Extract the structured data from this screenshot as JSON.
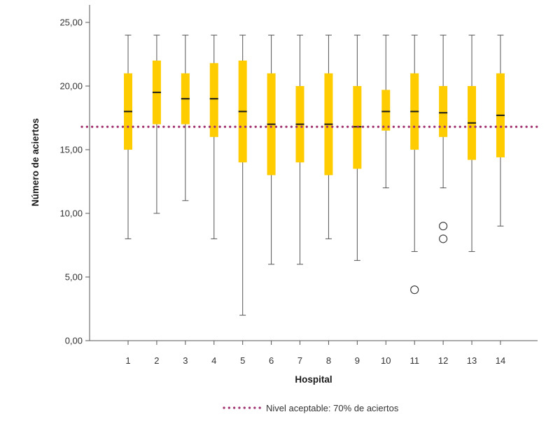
{
  "chart_data": {
    "type": "boxplot",
    "title": "",
    "xlabel": "Hospital",
    "ylabel": "Número de aciertos",
    "ylim": [
      0,
      25
    ],
    "yticks": [
      0,
      5,
      10,
      15,
      20,
      25
    ],
    "ytick_labels": [
      "0,00",
      "5,00",
      "10,00",
      "15,00",
      "20,00",
      "25,00"
    ],
    "categories": [
      "1",
      "2",
      "3",
      "4",
      "5",
      "6",
      "7",
      "8",
      "9",
      "10",
      "11",
      "12",
      "13",
      "14"
    ],
    "boxes": [
      {
        "min": 8,
        "q1": 15,
        "median": 18,
        "q3": 21,
        "max": 24,
        "outliers": []
      },
      {
        "min": 10,
        "q1": 17,
        "median": 19.5,
        "q3": 22,
        "max": 24,
        "outliers": []
      },
      {
        "min": 11,
        "q1": 17,
        "median": 19,
        "q3": 21,
        "max": 24,
        "outliers": []
      },
      {
        "min": 8,
        "q1": 16,
        "median": 19,
        "q3": 21.8,
        "max": 24,
        "outliers": []
      },
      {
        "min": 2,
        "q1": 14,
        "median": 18,
        "q3": 22,
        "max": 24,
        "outliers": []
      },
      {
        "min": 6,
        "q1": 13,
        "median": 17,
        "q3": 21,
        "max": 24,
        "outliers": []
      },
      {
        "min": 6,
        "q1": 14,
        "median": 17,
        "q3": 20,
        "max": 24,
        "outliers": []
      },
      {
        "min": 8,
        "q1": 13,
        "median": 17,
        "q3": 21,
        "max": 24,
        "outliers": []
      },
      {
        "min": 6.3,
        "q1": 13.5,
        "median": 16.8,
        "q3": 20,
        "max": 24,
        "outliers": []
      },
      {
        "min": 12,
        "q1": 16.5,
        "median": 18,
        "q3": 19.7,
        "max": 24,
        "outliers": []
      },
      {
        "min": 7,
        "q1": 15,
        "median": 18,
        "q3": 21,
        "max": 24,
        "outliers": [
          4
        ]
      },
      {
        "min": 12,
        "q1": 16,
        "median": 17.9,
        "q3": 20,
        "max": 24,
        "outliers": [
          9,
          8
        ]
      },
      {
        "min": 7,
        "q1": 14.2,
        "median": 17.1,
        "q3": 20,
        "max": 24,
        "outliers": []
      },
      {
        "min": 9,
        "q1": 14.4,
        "median": 17.7,
        "q3": 21,
        "max": 24,
        "outliers": []
      }
    ],
    "reference_line": {
      "value": 16.8,
      "label": "Nivel aceptable: 70% de aciertos",
      "style": "dotted"
    },
    "legend_position": "bottom",
    "colors": {
      "box": "#ffcc00",
      "median": "#1a1a1a",
      "whisker": "#555555",
      "reference": "#a0306e",
      "axis": "#555555"
    }
  }
}
